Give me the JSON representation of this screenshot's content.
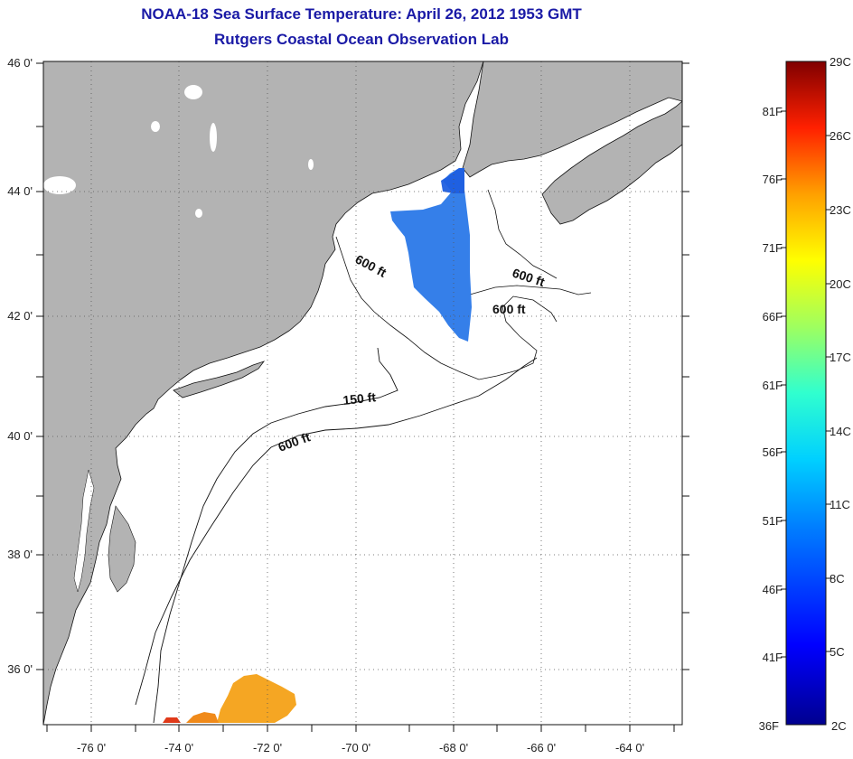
{
  "header": {
    "title": "NOAA-18 Sea Surface Temperature:  April 26, 2012 1953 GMT",
    "subtitle": "Rutgers Coastal Ocean Observation Lab"
  },
  "map": {
    "lat_ticks": [
      "46 0'",
      "44 0'",
      "42 0'",
      "40 0'",
      "38 0'",
      "36 0'"
    ],
    "lon_ticks": [
      "-76 0'",
      "-74 0'",
      "-72 0'",
      "-70 0'",
      "-68 0'",
      "-66 0'",
      "-64 0'"
    ],
    "contour_labels": [
      "600 ft",
      "600 ft",
      "600 ft",
      "150 ft",
      "600 ft"
    ],
    "colors": {
      "land": "#b3b3b3",
      "ocean": "#ffffff",
      "grid": "#555555"
    }
  },
  "colorbar": {
    "celsius": [
      "29C",
      "26C",
      "23C",
      "20C",
      "17C",
      "14C",
      "11C",
      "8C",
      "5C",
      "2C"
    ],
    "fahrenheit": [
      "81F",
      "76F",
      "71F",
      "66F",
      "61F",
      "56F",
      "51F",
      "46F",
      "41F",
      "36F"
    ]
  }
}
